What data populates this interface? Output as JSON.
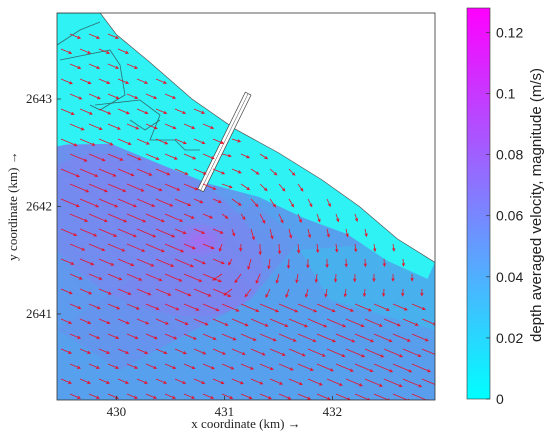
{
  "chart_data": {
    "type": "vector-field",
    "xlabel": "x coordinate (km) →",
    "ylabel": "y coordinate (km) →",
    "xlim": [
      429.45,
      432.95
    ],
    "ylim": [
      2640.2,
      2643.8
    ],
    "x_ticks": [
      "430",
      "431",
      "432"
    ],
    "x_tick_values": [
      430,
      431,
      432
    ],
    "y_ticks": [
      "2641",
      "2642",
      "2643"
    ],
    "y_tick_values": [
      2641,
      2642,
      2643
    ],
    "colorbar": {
      "label": "depth averaged velocity, magnitude (m/s)",
      "min": 0,
      "max": 0.128,
      "ticks": [
        "0",
        "0.02",
        "0.04",
        "0.06",
        "0.08",
        "0.1",
        "0.12"
      ],
      "tick_values": [
        0,
        0.02,
        0.04,
        0.06,
        0.08,
        0.1,
        0.12
      ],
      "color_low": "#00ffff",
      "color_high": "#ff00ff"
    },
    "arrow_color": "#e8132b",
    "land_color": "#ffffff",
    "coastline": [
      [
        429.45,
        2643.8
      ],
      [
        429.85,
        2643.8
      ],
      [
        430.0,
        2643.6
      ],
      [
        430.3,
        2643.35
      ],
      [
        430.7,
        2643.0
      ],
      [
        431.1,
        2642.72
      ],
      [
        431.5,
        2642.5
      ],
      [
        431.9,
        2642.25
      ],
      [
        432.25,
        2642.0
      ],
      [
        432.6,
        2641.7
      ],
      [
        432.95,
        2641.48
      ]
    ],
    "jetty": {
      "root": [
        430.78,
        2642.15
      ],
      "tip": [
        431.22,
        2643.05
      ]
    },
    "speed_maximum_location": [
      430.83,
      2641.75
    ],
    "flow_pattern": "mainly eastward and south-eastward, strongest west of the jetty tip, with a clockwise eddy east of the jetty"
  }
}
